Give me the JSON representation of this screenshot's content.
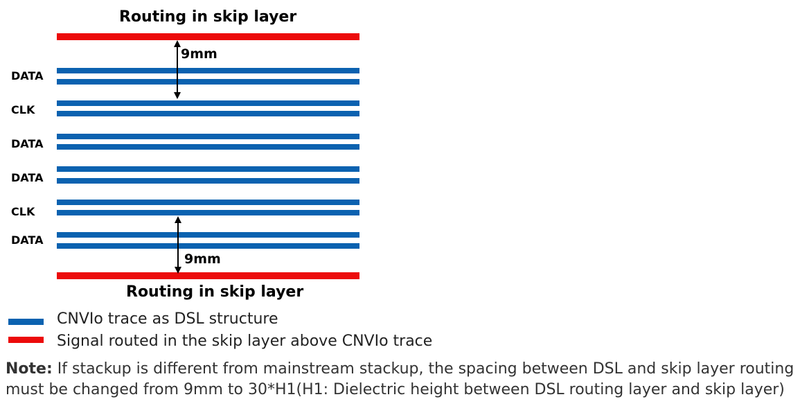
{
  "diagram": {
    "top_title": "Routing in skip layer",
    "bottom_title": "Routing in skip layer",
    "spacing_top": "9mm",
    "spacing_bottom": "9mm",
    "lanes": [
      "DATA",
      "CLK",
      "DATA",
      "DATA",
      "CLK",
      "DATA"
    ]
  },
  "legend": {
    "blue_label": "CNVIo trace as DSL structure",
    "red_label": "Signal routed in the skip layer above CNVIo trace"
  },
  "note": {
    "prefix": "Note:",
    "line1": " If stackup is different from mainstream stackup, the spacing between DSL and skip layer routing",
    "line2": "must be changed from 9mm to 30*H1(H1: Dielectric height between DSL routing layer and skip layer)"
  },
  "colors": {
    "dsl_trace": "#0b62b0",
    "skip_layer": "#ec0b0b"
  }
}
